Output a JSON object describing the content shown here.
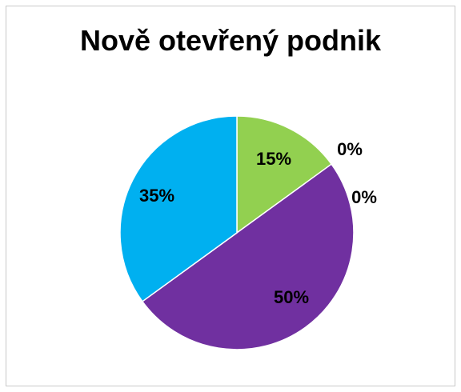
{
  "chart_data": {
    "type": "pie",
    "title": "Nově otevřený podnik",
    "slices": [
      {
        "label": "15%",
        "value": 15,
        "color": "#92d050"
      },
      {
        "label": "0%",
        "value": 0,
        "color": "#ffc000"
      },
      {
        "label": "0%",
        "value": 0,
        "color": "#ff0000"
      },
      {
        "label": "50%",
        "value": 50,
        "color": "#7030a0"
      },
      {
        "label": "35%",
        "value": 35,
        "color": "#00b0f0"
      }
    ],
    "legend": "none",
    "start_angle": "12 o'clock",
    "direction": "clockwise"
  }
}
